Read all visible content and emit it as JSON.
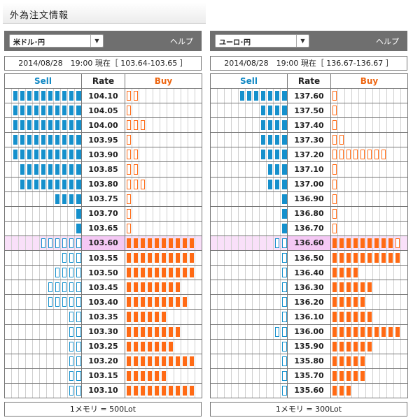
{
  "page_title": "外為注文情報",
  "colors": {
    "sell": "#1590cc",
    "buy": "#ff6a14",
    "current_rate": "#f4c8f4"
  },
  "panels": [
    {
      "pair": "米ドル･円",
      "help": "ヘルプ",
      "timestamp": "2014/08/28　19:00 現在［ 103.64-103.65 ］",
      "headers": {
        "sell": "Sell",
        "rate": "Rate",
        "buy": "Buy"
      },
      "lot_note": "1メモリ = 500Lot",
      "rows": [
        {
          "rate": "104.10",
          "sell": 10,
          "sell_style": "filled",
          "buy": 2,
          "buy_style": "outline",
          "current": false
        },
        {
          "rate": "104.05",
          "sell": 10,
          "sell_style": "filled",
          "buy": 1,
          "buy_style": "outline",
          "current": false
        },
        {
          "rate": "104.00",
          "sell": 10,
          "sell_style": "filled",
          "buy": 3,
          "buy_style": "outline",
          "current": false
        },
        {
          "rate": "103.95",
          "sell": 10,
          "sell_style": "filled",
          "buy": 1,
          "buy_style": "outline",
          "current": false
        },
        {
          "rate": "103.90",
          "sell": 10,
          "sell_style": "filled",
          "buy": 2,
          "buy_style": "outline",
          "current": false
        },
        {
          "rate": "103.85",
          "sell": 9,
          "sell_style": "filled",
          "buy": 2,
          "buy_style": "outline",
          "current": false
        },
        {
          "rate": "103.80",
          "sell": 9,
          "sell_style": "filled",
          "buy": 3,
          "buy_style": "outline",
          "current": false
        },
        {
          "rate": "103.75",
          "sell": 4,
          "sell_style": "filled",
          "buy": 1,
          "buy_style": "outline",
          "current": false
        },
        {
          "rate": "103.70",
          "sell": 1,
          "sell_style": "filled",
          "buy": 1,
          "buy_style": "outline",
          "current": false
        },
        {
          "rate": "103.65",
          "sell": 1,
          "sell_style": "filled",
          "buy": 1,
          "buy_style": "outline",
          "current": false
        },
        {
          "rate": "103.60",
          "sell": 6,
          "sell_style": "outline",
          "buy": 10,
          "buy_style": "filled",
          "current": true
        },
        {
          "rate": "103.55",
          "sell": 3,
          "sell_style": "outline",
          "buy": 10,
          "buy_style": "filled",
          "current": false
        },
        {
          "rate": "103.50",
          "sell": 4,
          "sell_style": "outline",
          "buy": 10,
          "buy_style": "filled",
          "current": false
        },
        {
          "rate": "103.45",
          "sell": 5,
          "sell_style": "outline",
          "buy": 8,
          "buy_style": "filled",
          "current": false
        },
        {
          "rate": "103.40",
          "sell": 5,
          "sell_style": "outline",
          "buy": 9,
          "buy_style": "filled",
          "current": false
        },
        {
          "rate": "103.35",
          "sell": 2,
          "sell_style": "outline",
          "buy": 6,
          "buy_style": "filled",
          "current": false
        },
        {
          "rate": "103.30",
          "sell": 2,
          "sell_style": "outline",
          "buy": 8,
          "buy_style": "filled",
          "current": false
        },
        {
          "rate": "103.25",
          "sell": 2,
          "sell_style": "outline",
          "buy": 7,
          "buy_style": "filled",
          "current": false
        },
        {
          "rate": "103.20",
          "sell": 2,
          "sell_style": "outline",
          "buy": 10,
          "buy_style": "filled",
          "current": false
        },
        {
          "rate": "103.15",
          "sell": 2,
          "sell_style": "outline",
          "buy": 6,
          "buy_style": "filled",
          "current": false
        },
        {
          "rate": "103.10",
          "sell": 2,
          "sell_style": "outline",
          "buy": 10,
          "buy_style": "filled",
          "current": false
        }
      ]
    },
    {
      "pair": "ユーロ･円",
      "help": "ヘルプ",
      "timestamp": "2014/08/28　19:00 現在［ 136.67-136.67 ］",
      "headers": {
        "sell": "Sell",
        "rate": "Rate",
        "buy": "Buy"
      },
      "lot_note": "1メモリ = 300Lot",
      "rows": [
        {
          "rate": "137.60",
          "sell": 7,
          "sell_style": "filled",
          "buy": 1,
          "buy_style": "outline",
          "current": false
        },
        {
          "rate": "137.50",
          "sell": 4,
          "sell_style": "filled",
          "buy": 1,
          "buy_style": "outline",
          "current": false
        },
        {
          "rate": "137.40",
          "sell": 4,
          "sell_style": "filled",
          "buy": 1,
          "buy_style": "outline",
          "current": false
        },
        {
          "rate": "137.30",
          "sell": 4,
          "sell_style": "filled",
          "buy": 2,
          "buy_style": "outline",
          "current": false
        },
        {
          "rate": "137.20",
          "sell": 4,
          "sell_style": "filled",
          "buy": 8,
          "buy_style": "outline",
          "current": false
        },
        {
          "rate": "137.10",
          "sell": 3,
          "sell_style": "filled",
          "buy": 1,
          "buy_style": "outline",
          "current": false
        },
        {
          "rate": "137.00",
          "sell": 3,
          "sell_style": "filled",
          "buy": 1,
          "buy_style": "outline",
          "current": false
        },
        {
          "rate": "136.90",
          "sell": 1,
          "sell_style": "filled",
          "buy": 1,
          "buy_style": "outline",
          "current": false
        },
        {
          "rate": "136.80",
          "sell": 1,
          "sell_style": "filled",
          "buy": 1,
          "buy_style": "outline",
          "current": false
        },
        {
          "rate": "136.70",
          "sell": 1,
          "sell_style": "filled",
          "buy": 1,
          "buy_style": "outline",
          "current": false
        },
        {
          "rate": "136.60",
          "sell": 2,
          "sell_style": "outline",
          "buy": 9,
          "buy_style": "filled",
          "buy_extra_outline": 1,
          "current": true
        },
        {
          "rate": "136.50",
          "sell": 1,
          "sell_style": "outline",
          "buy": 10,
          "buy_style": "filled",
          "current": false
        },
        {
          "rate": "136.40",
          "sell": 1,
          "sell_style": "outline",
          "buy": 4,
          "buy_style": "filled",
          "current": false
        },
        {
          "rate": "136.30",
          "sell": 1,
          "sell_style": "outline",
          "buy": 6,
          "buy_style": "filled",
          "current": false
        },
        {
          "rate": "136.20",
          "sell": 1,
          "sell_style": "outline",
          "buy": 5,
          "buy_style": "filled",
          "current": false
        },
        {
          "rate": "136.10",
          "sell": 1,
          "sell_style": "outline",
          "buy": 6,
          "buy_style": "filled",
          "current": false
        },
        {
          "rate": "136.00",
          "sell": 2,
          "sell_style": "outline",
          "buy": 10,
          "buy_style": "filled",
          "current": false
        },
        {
          "rate": "135.90",
          "sell": 1,
          "sell_style": "outline",
          "buy": 6,
          "buy_style": "filled",
          "current": false
        },
        {
          "rate": "135.80",
          "sell": 1,
          "sell_style": "outline",
          "buy": 5,
          "buy_style": "filled",
          "current": false
        },
        {
          "rate": "135.70",
          "sell": 1,
          "sell_style": "outline",
          "buy": 5,
          "buy_style": "filled",
          "current": false
        },
        {
          "rate": "135.60",
          "sell": 1,
          "sell_style": "outline",
          "buy": 3,
          "buy_style": "filled",
          "current": false
        }
      ]
    }
  ]
}
